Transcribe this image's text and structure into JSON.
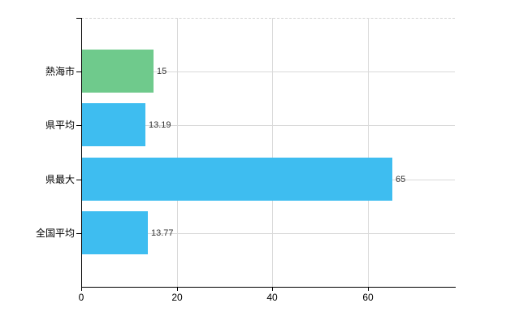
{
  "chart_data": {
    "type": "bar",
    "orientation": "horizontal",
    "title": "",
    "xlabel": "",
    "ylabel": "",
    "categories": [
      "熱海市",
      "県平均",
      "県最大",
      "全国平均"
    ],
    "values": [
      15,
      13.19,
      65,
      13.77
    ],
    "value_labels": [
      "15",
      "13.19",
      "65",
      "13.77"
    ],
    "bar_colors": [
      "#6fca8c",
      "#3ebdf0",
      "#3ebdf0",
      "#3ebdf0"
    ],
    "x_ticks": [
      0,
      20,
      40,
      60
    ],
    "x_tick_labels": [
      "0",
      "20",
      "40",
      "60"
    ],
    "xlim": [
      0,
      78.2
    ],
    "grid": true,
    "legend": "none"
  },
  "colors": {
    "background": "#ffffff",
    "axis": "#000000",
    "gridline": "#d9d9d9",
    "top_border": "#d4d4d4",
    "highlight_bar": "#6fca8c",
    "default_bar": "#3ebdf0",
    "value_text": "#333333",
    "label_text": "#000000"
  }
}
